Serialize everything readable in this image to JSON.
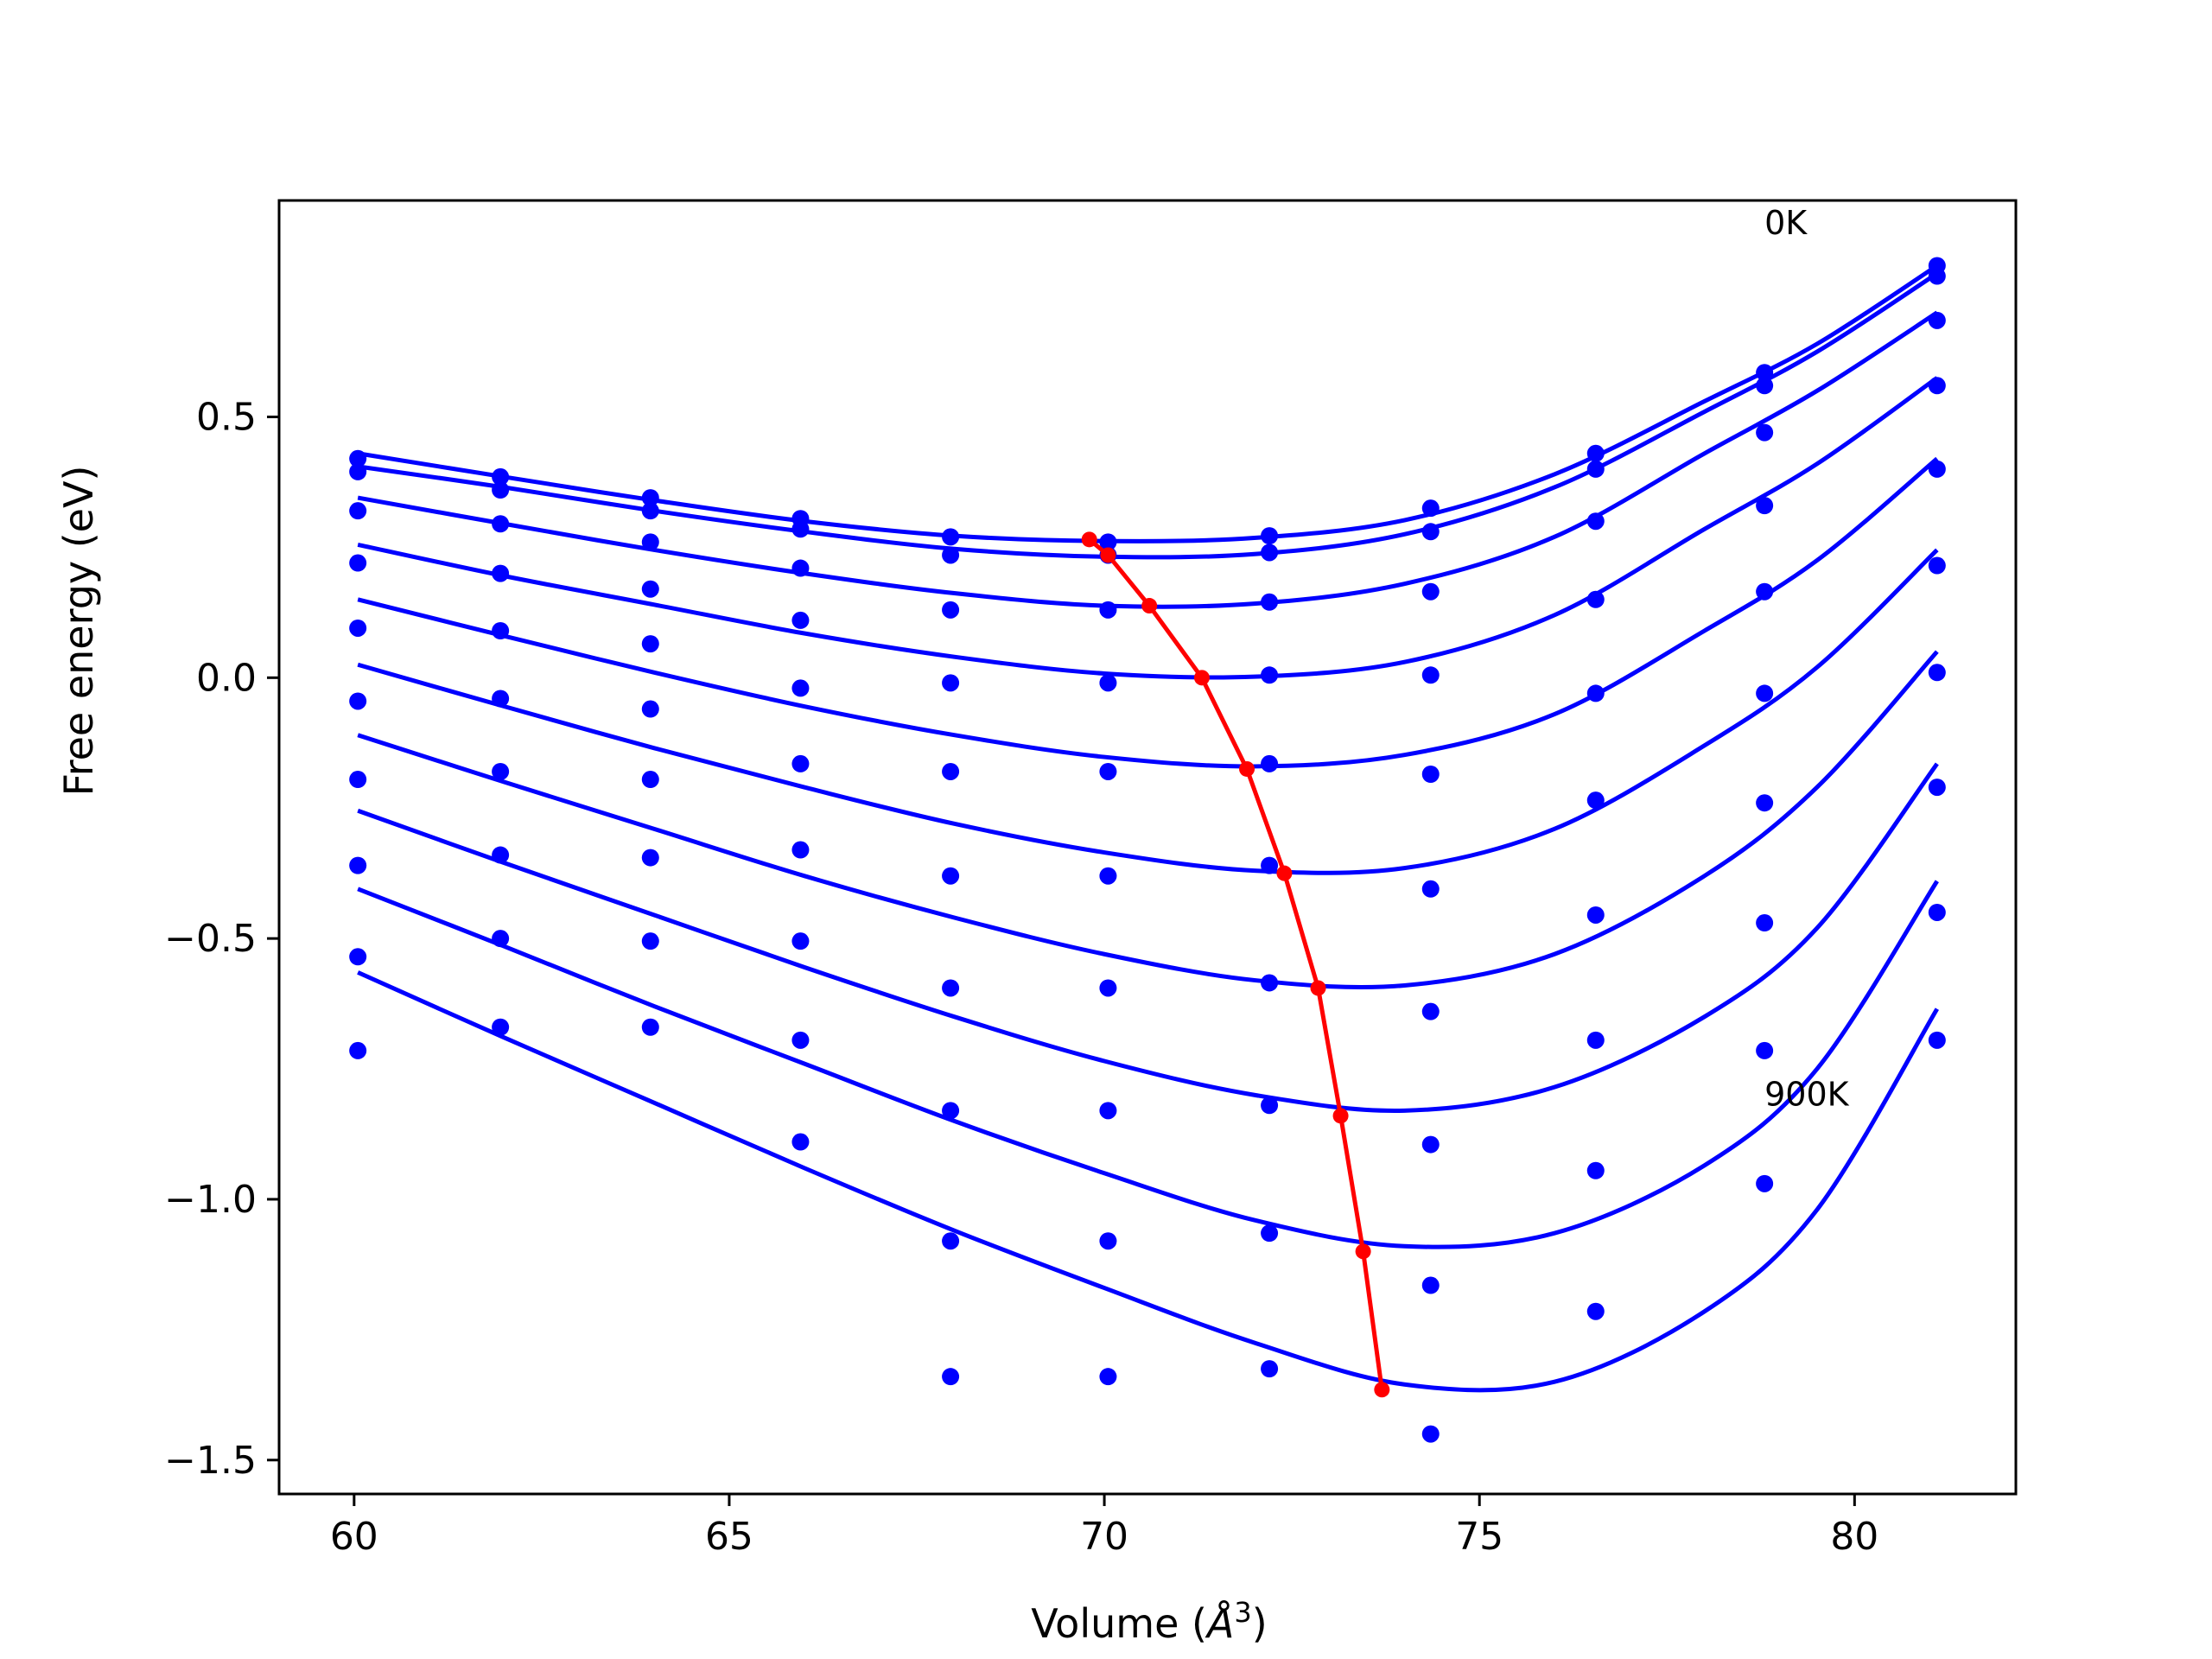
{
  "chart_data": {
    "type": "scatter",
    "title": "",
    "xlabel": "Volume (Å³)",
    "xlabel_parts": {
      "text": "Volume (",
      "symbol": "Å",
      "sup": "3",
      "close": ")"
    },
    "ylabel": "Free energy (eV)",
    "xlim": [
      59.0,
      82.15
    ],
    "ylim": [
      -1.565,
      0.915
    ],
    "x_ticks": [
      60,
      65,
      70,
      75,
      80
    ],
    "x_tick_labels": [
      "60",
      "65",
      "70",
      "75",
      "80"
    ],
    "y_ticks": [
      0.5,
      0.0,
      -0.5,
      -1.0,
      -1.5
    ],
    "y_tick_labels": [
      "0.5",
      "0.0",
      "−0.5",
      "−1.0",
      "−1.5"
    ],
    "grid": false,
    "legend": "none",
    "annotations": [
      {
        "text": "0K",
        "x": 78.8,
        "y": 0.85
      },
      {
        "text": "900K",
        "x": 78.8,
        "y": -0.82
      }
    ],
    "volumes": [
      60.05,
      61.95,
      63.95,
      65.95,
      67.95,
      70.05,
      72.2,
      74.35,
      76.55,
      78.8,
      81.1
    ],
    "series": [
      {
        "y": [
          0.42,
          0.385,
          0.345,
          0.305,
          0.27,
          0.26,
          0.272,
          0.325,
          0.43,
          0.585,
          0.79
        ]
      },
      {
        "y": [
          0.395,
          0.36,
          0.32,
          0.285,
          0.235,
          0.235,
          0.24,
          0.28,
          0.4,
          0.56,
          0.77
        ]
      },
      {
        "y": [
          0.32,
          0.295,
          0.26,
          0.21,
          0.13,
          0.13,
          0.145,
          0.165,
          0.3,
          0.47,
          0.685
        ]
      },
      {
        "y": [
          0.22,
          0.2,
          0.17,
          0.11,
          -0.01,
          -0.01,
          0.005,
          0.005,
          0.15,
          0.33,
          0.56
        ]
      },
      {
        "y": [
          0.095,
          0.09,
          0.065,
          -0.02,
          -0.18,
          -0.18,
          -0.165,
          -0.185,
          -0.03,
          0.165,
          0.4
        ]
      },
      {
        "y": [
          -0.045,
          -0.04,
          -0.06,
          -0.165,
          -0.38,
          -0.38,
          -0.36,
          -0.405,
          -0.235,
          -0.03,
          0.215
        ]
      },
      {
        "y": [
          -0.195,
          -0.18,
          -0.195,
          -0.33,
          -0.595,
          -0.595,
          -0.585,
          -0.64,
          -0.455,
          -0.24,
          0.01
        ]
      },
      {
        "y": [
          -0.36,
          -0.34,
          -0.345,
          -0.505,
          -0.83,
          -0.83,
          -0.82,
          -0.895,
          -0.695,
          -0.47,
          -0.21
        ]
      },
      {
        "y": [
          -0.535,
          -0.5,
          -0.505,
          -0.695,
          -1.08,
          -1.08,
          -1.065,
          -1.165,
          -0.945,
          -0.715,
          -0.45
        ]
      },
      {
        "y": [
          -0.715,
          -0.67,
          -0.67,
          -0.89,
          -1.34,
          -1.34,
          -1.325,
          -1.45,
          -1.215,
          -0.97,
          -0.695
        ]
      }
    ],
    "fit_curves": [
      {
        "x": [
          60.05,
          62,
          64,
          66,
          68,
          70,
          72,
          74,
          76,
          78,
          79.5,
          81.1
        ],
        "y": [
          0.43,
          0.385,
          0.34,
          0.3,
          0.272,
          0.262,
          0.268,
          0.302,
          0.39,
          0.53,
          0.64,
          0.79
        ]
      },
      {
        "x": [
          60.05,
          62,
          64,
          66,
          68,
          70,
          72,
          74,
          76,
          78,
          79.5,
          81.1
        ],
        "y": [
          0.405,
          0.365,
          0.32,
          0.28,
          0.247,
          0.232,
          0.237,
          0.275,
          0.365,
          0.51,
          0.625,
          0.775
        ]
      },
      {
        "x": [
          60.05,
          62,
          64,
          66,
          68,
          70,
          72,
          74,
          76,
          78,
          79.5,
          81.1
        ],
        "y": [
          0.345,
          0.295,
          0.245,
          0.2,
          0.162,
          0.138,
          0.142,
          0.18,
          0.27,
          0.43,
          0.55,
          0.7
        ]
      },
      {
        "x": [
          60.05,
          62,
          64,
          66,
          68,
          70,
          72,
          74,
          76,
          78,
          79.5,
          81.1
        ],
        "y": [
          0.255,
          0.195,
          0.14,
          0.085,
          0.04,
          0.008,
          0.002,
          0.03,
          0.12,
          0.285,
          0.41,
          0.575
        ]
      },
      {
        "x": [
          60.05,
          62,
          64,
          66,
          68,
          70,
          72,
          74,
          76,
          78,
          79.5,
          81.1
        ],
        "y": [
          0.15,
          0.08,
          0.01,
          -0.055,
          -0.11,
          -0.152,
          -0.17,
          -0.148,
          -0.07,
          0.09,
          0.225,
          0.42
        ]
      },
      {
        "x": [
          60.05,
          62,
          64,
          66,
          68,
          70,
          72,
          74,
          76,
          78,
          79.5,
          81.1
        ],
        "y": [
          0.025,
          -0.055,
          -0.135,
          -0.21,
          -0.28,
          -0.335,
          -0.37,
          -0.365,
          -0.29,
          -0.13,
          0.02,
          0.245
        ]
      },
      {
        "x": [
          60.05,
          62,
          64,
          66,
          68,
          70,
          72,
          74,
          76,
          78,
          79.5,
          81.1
        ],
        "y": [
          -0.11,
          -0.2,
          -0.29,
          -0.38,
          -0.46,
          -0.53,
          -0.58,
          -0.59,
          -0.53,
          -0.38,
          -0.21,
          0.05
        ]
      },
      {
        "x": [
          60.05,
          62,
          64,
          66,
          68,
          70,
          72,
          74,
          76,
          78,
          79.5,
          81.1
        ],
        "y": [
          -0.255,
          -0.355,
          -0.455,
          -0.555,
          -0.65,
          -0.735,
          -0.8,
          -0.83,
          -0.785,
          -0.65,
          -0.48,
          -0.165
        ]
      },
      {
        "x": [
          60.05,
          62,
          64,
          66,
          68,
          70,
          72,
          74,
          76,
          78,
          79.5,
          81.1
        ],
        "y": [
          -0.405,
          -0.515,
          -0.63,
          -0.74,
          -0.85,
          -0.95,
          -1.04,
          -1.09,
          -1.065,
          -0.935,
          -0.75,
          -0.39
        ]
      },
      {
        "x": [
          60.05,
          62,
          64,
          66,
          68,
          70,
          72,
          74,
          76,
          78,
          79.5,
          81.1
        ],
        "y": [
          -0.565,
          -0.69,
          -0.815,
          -0.94,
          -1.06,
          -1.17,
          -1.275,
          -1.355,
          -1.35,
          -1.215,
          -1.02,
          -0.635
        ]
      }
    ],
    "minima": {
      "x": [
        69.8,
        70.05,
        70.6,
        71.3,
        71.9,
        72.4,
        72.85,
        73.15,
        73.45,
        73.7
      ],
      "y": [
        0.265,
        0.235,
        0.138,
        0.0,
        -0.175,
        -0.375,
        -0.595,
        -0.84,
        -1.1,
        -1.365
      ]
    },
    "colors": {
      "series": "#0000ff",
      "minima": "#ff0000",
      "axes": "#000000"
    }
  }
}
